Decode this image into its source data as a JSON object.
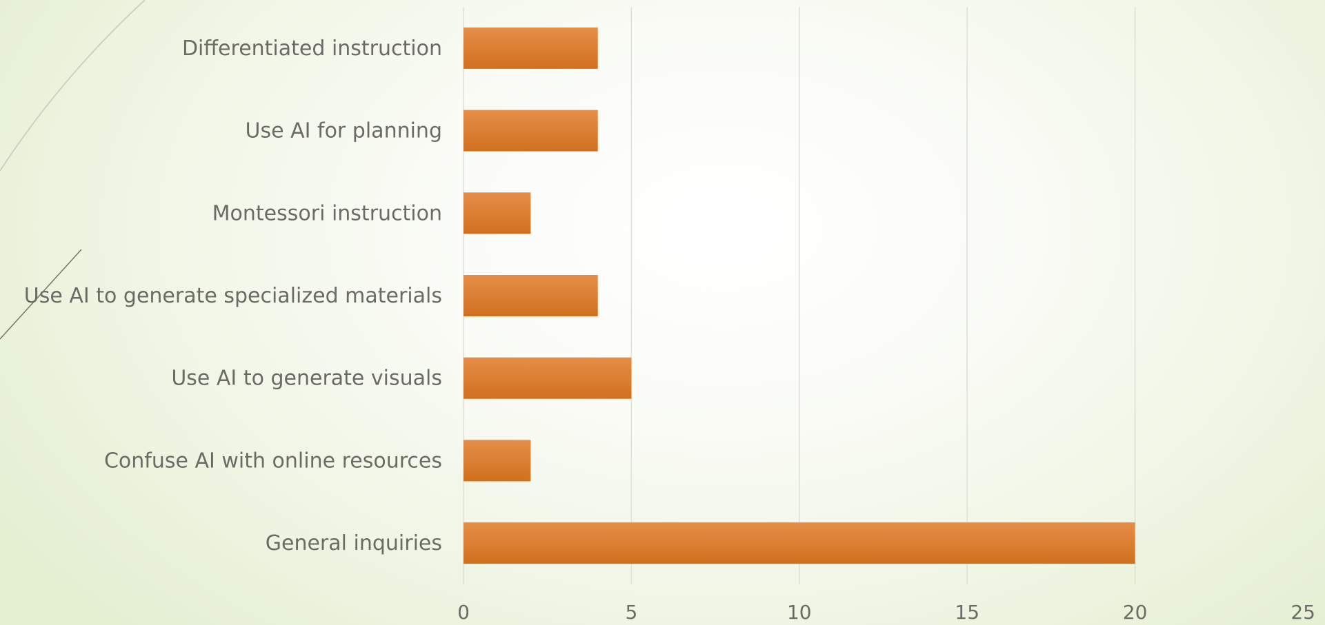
{
  "chart_data": {
    "type": "bar",
    "orientation": "horizontal",
    "categories": [
      "Differentiated instruction",
      "Use AI for planning",
      "Montessori instruction",
      "Use AI to generate specialized materials",
      "Use AI to generate visuals",
      "Confuse AI with online resources",
      "General inquiries"
    ],
    "values": [
      4,
      4,
      2,
      4,
      5,
      2,
      20
    ],
    "xlim": [
      0,
      25
    ],
    "x_ticks": [
      "0",
      "5",
      "10",
      "15",
      "20",
      "25"
    ],
    "title": "",
    "xlabel": "",
    "ylabel": "",
    "grid": "vertical",
    "legend": "none",
    "colors": {
      "bar_top": "#e58e48",
      "bar_bottom": "#d0701e",
      "gridline": "#dedfda",
      "text": "#6b6b66"
    }
  }
}
